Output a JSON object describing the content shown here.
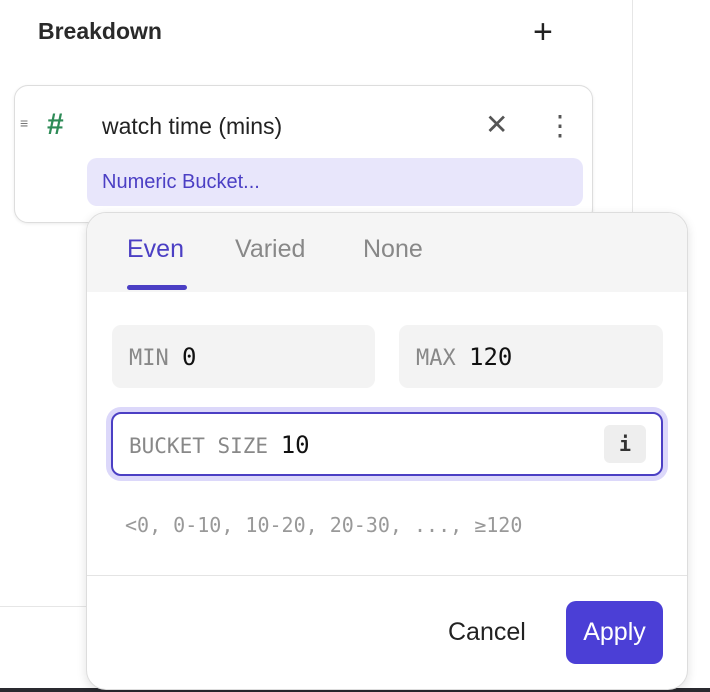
{
  "header": {
    "title": "Breakdown",
    "add_icon": "+"
  },
  "breakdown": {
    "drag_icon": "≡",
    "type_icon": "#",
    "field": "watch time (mins)",
    "remove_icon": "✕",
    "more_icon": "⋮",
    "chip": "Numeric Bucket..."
  },
  "popover": {
    "tabs": [
      {
        "label": "Even",
        "active": true
      },
      {
        "label": "Varied"
      },
      {
        "label": "None"
      }
    ],
    "min": {
      "label": "MIN",
      "value": "0"
    },
    "max": {
      "label": "MAX",
      "value": "120"
    },
    "bucket_size": {
      "label": "BUCKET SIZE",
      "value": "10",
      "info_icon": "i"
    },
    "preview": "<0, 0-10, 10-20, 20-30, ..., ≥120",
    "cancel": "Cancel",
    "apply": "Apply",
    "accent": "#4b3fd6"
  }
}
